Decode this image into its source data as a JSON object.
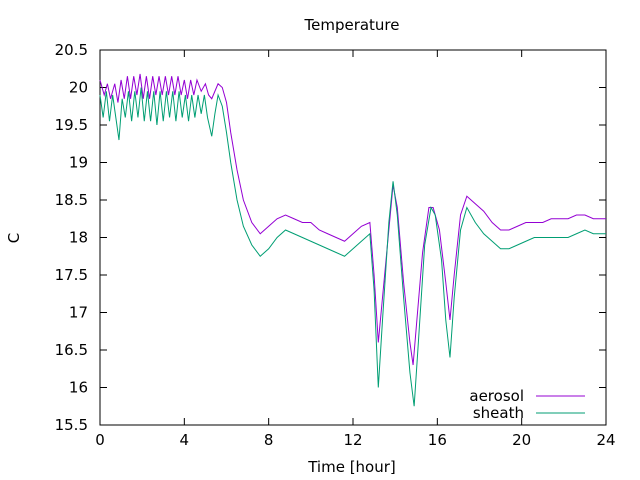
{
  "chart_data": {
    "type": "line",
    "title": "Temperature",
    "xlabel": "Time [hour]",
    "ylabel": "C",
    "xlim": [
      0,
      24
    ],
    "ylim": [
      15.5,
      20.5
    ],
    "xticks": [
      0,
      4,
      8,
      12,
      16,
      20,
      24
    ],
    "yticks": [
      15.5,
      16,
      16.5,
      17,
      17.5,
      18,
      18.5,
      19,
      19.5,
      20,
      20.5
    ],
    "xtick_labels": [
      "0",
      "4",
      "8",
      "12",
      "16",
      "20",
      "24"
    ],
    "ytick_labels": [
      "15.5",
      "16",
      "16.5",
      "17",
      "17.5",
      "18",
      "18.5",
      "19",
      "19.5",
      "20",
      "20.5"
    ],
    "grid": false,
    "legend_position": "bottom-right",
    "series": [
      {
        "name": "aerosol",
        "color": "#9400d3",
        "points": [
          [
            0,
            20.1
          ],
          [
            0.2,
            19.9
          ],
          [
            0.35,
            20.05
          ],
          [
            0.5,
            19.85
          ],
          [
            0.7,
            20.05
          ],
          [
            0.85,
            19.8
          ],
          [
            1.0,
            20.1
          ],
          [
            1.15,
            19.85
          ],
          [
            1.3,
            20.15
          ],
          [
            1.45,
            19.85
          ],
          [
            1.6,
            20.15
          ],
          [
            1.75,
            19.9
          ],
          [
            1.9,
            20.18
          ],
          [
            2.05,
            19.85
          ],
          [
            2.2,
            20.15
          ],
          [
            2.35,
            19.85
          ],
          [
            2.5,
            20.15
          ],
          [
            2.65,
            19.9
          ],
          [
            2.8,
            20.15
          ],
          [
            2.95,
            19.9
          ],
          [
            3.1,
            20.15
          ],
          [
            3.25,
            19.9
          ],
          [
            3.4,
            20.15
          ],
          [
            3.55,
            19.9
          ],
          [
            3.7,
            20.15
          ],
          [
            3.85,
            19.9
          ],
          [
            4.0,
            20.1
          ],
          [
            4.15,
            19.85
          ],
          [
            4.3,
            20.1
          ],
          [
            4.45,
            19.9
          ],
          [
            4.6,
            20.1
          ],
          [
            4.8,
            19.95
          ],
          [
            5.0,
            20.05
          ],
          [
            5.15,
            19.9
          ],
          [
            5.3,
            19.85
          ],
          [
            5.45,
            19.95
          ],
          [
            5.6,
            20.05
          ],
          [
            5.8,
            20.0
          ],
          [
            6.0,
            19.8
          ],
          [
            6.2,
            19.4
          ],
          [
            6.5,
            18.9
          ],
          [
            6.8,
            18.5
          ],
          [
            7.2,
            18.2
          ],
          [
            7.6,
            18.05
          ],
          [
            8.0,
            18.15
          ],
          [
            8.4,
            18.25
          ],
          [
            8.8,
            18.3
          ],
          [
            9.2,
            18.25
          ],
          [
            9.6,
            18.2
          ],
          [
            10.0,
            18.2
          ],
          [
            10.4,
            18.1
          ],
          [
            10.8,
            18.05
          ],
          [
            11.2,
            18.0
          ],
          [
            11.6,
            17.95
          ],
          [
            12.0,
            18.05
          ],
          [
            12.4,
            18.15
          ],
          [
            12.8,
            18.2
          ],
          [
            13.0,
            17.5
          ],
          [
            13.2,
            16.6
          ],
          [
            13.4,
            17.2
          ],
          [
            13.7,
            18.1
          ],
          [
            13.9,
            18.7
          ],
          [
            14.1,
            18.4
          ],
          [
            14.4,
            17.4
          ],
          [
            14.7,
            16.6
          ],
          [
            14.85,
            16.3
          ],
          [
            15.0,
            16.8
          ],
          [
            15.3,
            17.8
          ],
          [
            15.6,
            18.4
          ],
          [
            15.8,
            18.4
          ],
          [
            16.1,
            18.1
          ],
          [
            16.4,
            17.4
          ],
          [
            16.6,
            16.9
          ],
          [
            16.8,
            17.5
          ],
          [
            17.1,
            18.3
          ],
          [
            17.4,
            18.55
          ],
          [
            17.8,
            18.45
          ],
          [
            18.2,
            18.35
          ],
          [
            18.6,
            18.2
          ],
          [
            19.0,
            18.1
          ],
          [
            19.4,
            18.1
          ],
          [
            19.8,
            18.15
          ],
          [
            20.2,
            18.2
          ],
          [
            20.6,
            18.2
          ],
          [
            21.0,
            18.2
          ],
          [
            21.4,
            18.25
          ],
          [
            21.8,
            18.25
          ],
          [
            22.2,
            18.25
          ],
          [
            22.6,
            18.3
          ],
          [
            23.0,
            18.3
          ],
          [
            23.4,
            18.25
          ],
          [
            23.7,
            18.25
          ],
          [
            24.0,
            18.25
          ]
        ]
      },
      {
        "name": "sheath",
        "color": "#009e73",
        "points": [
          [
            0,
            19.9
          ],
          [
            0.15,
            19.6
          ],
          [
            0.3,
            19.95
          ],
          [
            0.45,
            19.55
          ],
          [
            0.6,
            19.9
          ],
          [
            0.8,
            19.5
          ],
          [
            0.9,
            19.3
          ],
          [
            1.05,
            19.85
          ],
          [
            1.2,
            19.6
          ],
          [
            1.35,
            19.95
          ],
          [
            1.5,
            19.55
          ],
          [
            1.65,
            19.95
          ],
          [
            1.8,
            19.6
          ],
          [
            1.95,
            20.0
          ],
          [
            2.1,
            19.55
          ],
          [
            2.25,
            19.95
          ],
          [
            2.4,
            19.55
          ],
          [
            2.55,
            19.95
          ],
          [
            2.7,
            19.5
          ],
          [
            2.85,
            19.95
          ],
          [
            3.0,
            19.55
          ],
          [
            3.15,
            19.95
          ],
          [
            3.3,
            19.6
          ],
          [
            3.45,
            19.95
          ],
          [
            3.6,
            19.55
          ],
          [
            3.75,
            19.95
          ],
          [
            3.9,
            19.6
          ],
          [
            4.05,
            19.9
          ],
          [
            4.2,
            19.55
          ],
          [
            4.35,
            19.9
          ],
          [
            4.5,
            19.6
          ],
          [
            4.65,
            19.9
          ],
          [
            4.8,
            19.65
          ],
          [
            4.95,
            19.9
          ],
          [
            5.1,
            19.6
          ],
          [
            5.3,
            19.35
          ],
          [
            5.45,
            19.65
          ],
          [
            5.6,
            19.9
          ],
          [
            5.8,
            19.75
          ],
          [
            6.0,
            19.4
          ],
          [
            6.2,
            19.0
          ],
          [
            6.5,
            18.5
          ],
          [
            6.8,
            18.15
          ],
          [
            7.2,
            17.9
          ],
          [
            7.6,
            17.75
          ],
          [
            8.0,
            17.85
          ],
          [
            8.4,
            18.0
          ],
          [
            8.8,
            18.1
          ],
          [
            9.2,
            18.05
          ],
          [
            9.6,
            18.0
          ],
          [
            10.0,
            17.95
          ],
          [
            10.4,
            17.9
          ],
          [
            10.8,
            17.85
          ],
          [
            11.2,
            17.8
          ],
          [
            11.6,
            17.75
          ],
          [
            12.0,
            17.85
          ],
          [
            12.4,
            17.95
          ],
          [
            12.8,
            18.05
          ],
          [
            13.0,
            17.3
          ],
          [
            13.2,
            16.0
          ],
          [
            13.4,
            16.9
          ],
          [
            13.7,
            18.2
          ],
          [
            13.9,
            18.75
          ],
          [
            14.1,
            18.3
          ],
          [
            14.4,
            17.2
          ],
          [
            14.7,
            16.2
          ],
          [
            14.9,
            15.75
          ],
          [
            15.1,
            16.6
          ],
          [
            15.4,
            17.9
          ],
          [
            15.7,
            18.4
          ],
          [
            15.9,
            18.3
          ],
          [
            16.2,
            17.7
          ],
          [
            16.4,
            16.9
          ],
          [
            16.6,
            16.4
          ],
          [
            16.8,
            17.2
          ],
          [
            17.1,
            18.1
          ],
          [
            17.4,
            18.4
          ],
          [
            17.8,
            18.2
          ],
          [
            18.2,
            18.05
          ],
          [
            18.6,
            17.95
          ],
          [
            19.0,
            17.85
          ],
          [
            19.4,
            17.85
          ],
          [
            19.8,
            17.9
          ],
          [
            20.2,
            17.95
          ],
          [
            20.6,
            18.0
          ],
          [
            21.0,
            18.0
          ],
          [
            21.4,
            18.0
          ],
          [
            21.8,
            18.0
          ],
          [
            22.2,
            18.0
          ],
          [
            22.6,
            18.05
          ],
          [
            23.0,
            18.1
          ],
          [
            23.4,
            18.05
          ],
          [
            23.7,
            18.05
          ],
          [
            24.0,
            18.05
          ]
        ]
      }
    ]
  }
}
